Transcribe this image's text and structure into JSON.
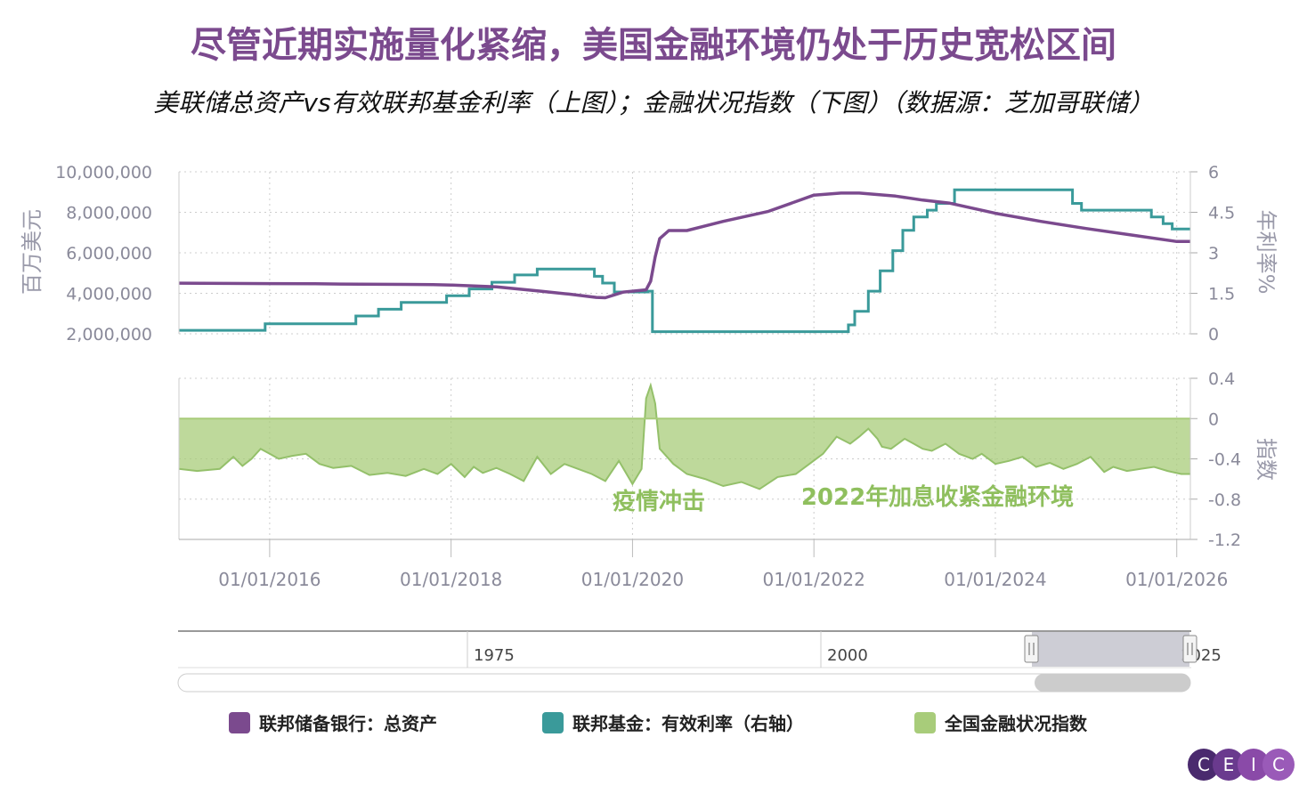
{
  "title": "尽管近期实施量化紧缩，美国金融环境仍处于历史宽松区间",
  "subtitle": "美联储总资产vs有效联邦基金利率（上图）；金融状况指数（下图）（数据源：芝加哥联储）",
  "colors": {
    "assets": "#7b4a8e",
    "rate": "#3a9a9a",
    "nfci": "#a8cc7a",
    "nfci_line": "#94c06a",
    "annotation": "#8fbf5e",
    "grid": "#cccccc"
  },
  "chart_data": [
    {
      "type": "line",
      "panel": "top",
      "ylabel_left": "百万美元",
      "ylabel_right": "年利率%",
      "y_left_ticks": [
        "2,000,000",
        "4,000,000",
        "6,000,000",
        "8,000,000",
        "10,000,000"
      ],
      "y_right_ticks": [
        "0",
        "1.5",
        "3",
        "4.5",
        "6"
      ],
      "ylim_left": [
        2000000,
        10000000
      ],
      "ylim_right": [
        0,
        6
      ],
      "xlim": [
        2015.0,
        2026.15
      ],
      "series": [
        {
          "name": "联邦储备银行：总资产",
          "axis": "left",
          "x": [
            2015.0,
            2015.5,
            2016.0,
            2016.5,
            2017.0,
            2017.5,
            2017.8,
            2018.0,
            2018.5,
            2019.0,
            2019.3,
            2019.6,
            2019.7,
            2019.9,
            2020.15,
            2020.2,
            2020.25,
            2020.3,
            2020.4,
            2020.6,
            2021.0,
            2021.5,
            2022.0,
            2022.3,
            2022.5,
            2022.9,
            2023.2,
            2023.5,
            2024.0,
            2024.5,
            2025.0,
            2025.5,
            2026.0,
            2026.15
          ],
          "values": [
            4500000,
            4490000,
            4480000,
            4470000,
            4450000,
            4440000,
            4430000,
            4410000,
            4320000,
            4100000,
            3960000,
            3800000,
            3780000,
            4060000,
            4170000,
            4600000,
            5800000,
            6700000,
            7100000,
            7100000,
            7550000,
            8050000,
            8850000,
            8950000,
            8950000,
            8800000,
            8600000,
            8450000,
            7950000,
            7550000,
            7200000,
            6880000,
            6560000,
            6560000
          ]
        },
        {
          "name": "联邦基金：有效利率（右轴）",
          "axis": "right",
          "step": true,
          "x": [
            2015.0,
            2015.95,
            2016.95,
            2017.2,
            2017.45,
            2017.95,
            2018.2,
            2018.45,
            2018.7,
            2018.95,
            2019.58,
            2019.67,
            2019.8,
            2020.17,
            2020.22,
            2022.2,
            2022.38,
            2022.45,
            2022.6,
            2022.73,
            2022.87,
            2022.98,
            2023.1,
            2023.25,
            2023.35,
            2023.55,
            2024.7,
            2024.85,
            2024.95,
            2025.72,
            2025.85,
            2025.95,
            2026.15
          ],
          "values": [
            0.13,
            0.37,
            0.66,
            0.91,
            1.16,
            1.41,
            1.66,
            1.91,
            2.18,
            2.4,
            2.13,
            1.88,
            1.55,
            1.58,
            0.08,
            0.08,
            0.33,
            0.83,
            1.58,
            2.33,
            3.08,
            3.83,
            4.33,
            4.58,
            4.83,
            5.33,
            5.33,
            4.83,
            4.58,
            4.33,
            4.08,
            3.88,
            3.88
          ]
        }
      ]
    },
    {
      "type": "area",
      "panel": "bottom",
      "ylabel_right": "指数",
      "y_right_ticks": [
        "0.4",
        "0",
        "-0.4",
        "-0.8",
        "-1.2"
      ],
      "ylim": [
        -1.2,
        0.4
      ],
      "xlim": [
        2015.0,
        2026.15
      ],
      "x_ticks": [
        "01/01/2016",
        "01/01/2018",
        "01/01/2020",
        "01/01/2022",
        "01/01/2024",
        "01/01/2026"
      ],
      "annotations": [
        "疫情冲击",
        "2022年加息收紧金融环境"
      ],
      "series": [
        {
          "name": "全国金融状况指数",
          "x": [
            2015.0,
            2015.2,
            2015.45,
            2015.6,
            2015.7,
            2015.8,
            2015.9,
            2016.0,
            2016.1,
            2016.25,
            2016.4,
            2016.55,
            2016.7,
            2016.9,
            2017.1,
            2017.3,
            2017.5,
            2017.7,
            2017.85,
            2018.0,
            2018.15,
            2018.25,
            2018.35,
            2018.5,
            2018.65,
            2018.8,
            2018.95,
            2019.1,
            2019.25,
            2019.4,
            2019.55,
            2019.7,
            2019.85,
            2020.0,
            2020.1,
            2020.15,
            2020.2,
            2020.25,
            2020.3,
            2020.35,
            2020.45,
            2020.6,
            2020.8,
            2021.0,
            2021.2,
            2021.4,
            2021.6,
            2021.8,
            2021.95,
            2022.1,
            2022.25,
            2022.4,
            2022.5,
            2022.6,
            2022.7,
            2022.75,
            2022.85,
            2023.0,
            2023.1,
            2023.2,
            2023.3,
            2023.45,
            2023.6,
            2023.75,
            2023.85,
            2024.0,
            2024.15,
            2024.3,
            2024.45,
            2024.6,
            2024.75,
            2024.9,
            2025.05,
            2025.2,
            2025.3,
            2025.45,
            2025.6,
            2025.75,
            2025.9,
            2026.05,
            2026.15
          ],
          "values": [
            -0.5,
            -0.52,
            -0.5,
            -0.38,
            -0.47,
            -0.4,
            -0.3,
            -0.35,
            -0.4,
            -0.37,
            -0.35,
            -0.45,
            -0.49,
            -0.47,
            -0.56,
            -0.54,
            -0.57,
            -0.5,
            -0.55,
            -0.45,
            -0.58,
            -0.48,
            -0.54,
            -0.49,
            -0.55,
            -0.62,
            -0.38,
            -0.55,
            -0.45,
            -0.5,
            -0.55,
            -0.62,
            -0.42,
            -0.65,
            -0.5,
            0.2,
            0.33,
            0.15,
            -0.3,
            -0.35,
            -0.45,
            -0.55,
            -0.6,
            -0.67,
            -0.63,
            -0.7,
            -0.58,
            -0.55,
            -0.45,
            -0.35,
            -0.18,
            -0.25,
            -0.18,
            -0.1,
            -0.2,
            -0.28,
            -0.3,
            -0.2,
            -0.25,
            -0.3,
            -0.32,
            -0.25,
            -0.35,
            -0.4,
            -0.35,
            -0.45,
            -0.42,
            -0.38,
            -0.48,
            -0.44,
            -0.5,
            -0.45,
            -0.38,
            -0.53,
            -0.48,
            -0.52,
            -0.5,
            -0.48,
            -0.52,
            -0.55,
            -0.55
          ]
        }
      ]
    }
  ],
  "navigator": {
    "labels": [
      "1975",
      "2000",
      "2025"
    ]
  },
  "legend": [
    {
      "label": "联邦储备银行：总资产",
      "color": "#7b4a8e"
    },
    {
      "label": "联邦基金：有效利率（右轴）",
      "color": "#3a9a9a"
    },
    {
      "label": "全国金融状况指数",
      "color": "#a8cc7a"
    }
  ],
  "logo": {
    "letters": [
      "C",
      "E",
      "I",
      "C"
    ]
  }
}
